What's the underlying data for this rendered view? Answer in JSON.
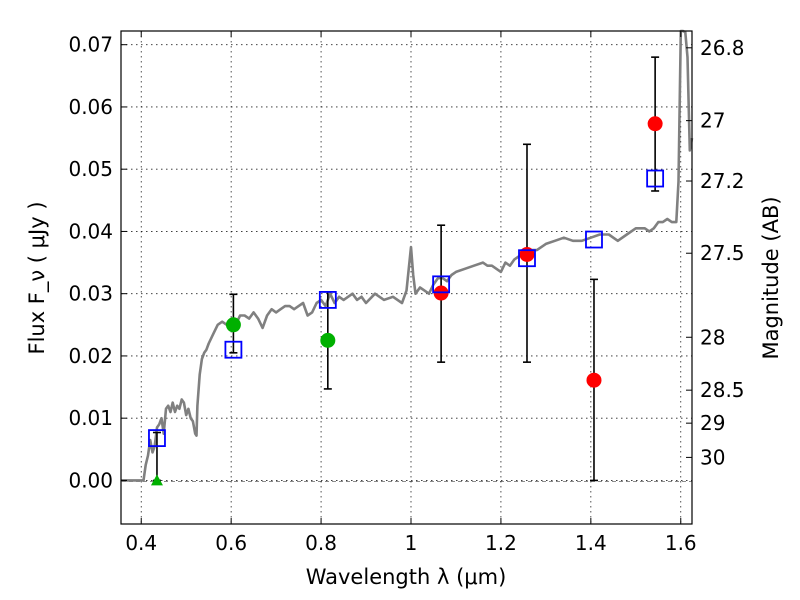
{
  "chart_data": {
    "type": "scatter",
    "xlabel": "Wavelength  λ (μm)",
    "ylabel": "Flux  F_ν  ( μJy )",
    "ylabel_right": "Magnitude (AB)",
    "xlim": [
      0.355,
      1.625
    ],
    "ylim": [
      -0.007,
      0.0722
    ],
    "grid": true,
    "x_ticks": [
      0.4,
      0.6,
      0.8,
      1.0,
      1.2,
      1.4,
      1.6
    ],
    "x_tick_labels": [
      "0.4",
      "0.6",
      "0.8",
      "1",
      "1.2",
      "1.4",
      "1.6"
    ],
    "y_ticks": [
      0.0,
      0.01,
      0.02,
      0.03,
      0.04,
      0.05,
      0.06,
      0.07
    ],
    "y_tick_labels": [
      "0.00",
      "0.01",
      "0.02",
      "0.03",
      "0.04",
      "0.05",
      "0.06",
      "0.07"
    ],
    "right_axis_ticks": [
      {
        "label": "26.8",
        "flux": 0.0695
      },
      {
        "label": "27",
        "flux": 0.0578
      },
      {
        "label": "27.2",
        "flux": 0.0481
      },
      {
        "label": "27.5",
        "flux": 0.0365
      },
      {
        "label": "28",
        "flux": 0.023
      },
      {
        "label": "28.5",
        "flux": 0.0145
      },
      {
        "label": "29",
        "flux": 0.0092
      },
      {
        "label": "30",
        "flux": 0.0037
      }
    ],
    "model_spectrum": {
      "color": "#808080",
      "x": [
        0.355,
        0.39,
        0.405,
        0.41,
        0.415,
        0.42,
        0.425,
        0.43,
        0.435,
        0.44,
        0.445,
        0.45,
        0.455,
        0.46,
        0.465,
        0.47,
        0.475,
        0.48,
        0.485,
        0.49,
        0.495,
        0.5,
        0.505,
        0.51,
        0.515,
        0.52,
        0.523,
        0.525,
        0.53,
        0.535,
        0.54,
        0.545,
        0.55,
        0.56,
        0.57,
        0.58,
        0.59,
        0.6,
        0.61,
        0.62,
        0.63,
        0.64,
        0.65,
        0.66,
        0.67,
        0.68,
        0.69,
        0.7,
        0.71,
        0.72,
        0.73,
        0.74,
        0.75,
        0.76,
        0.77,
        0.78,
        0.79,
        0.8,
        0.81,
        0.82,
        0.83,
        0.84,
        0.85,
        0.86,
        0.87,
        0.88,
        0.89,
        0.9,
        0.92,
        0.94,
        0.96,
        0.98,
        0.99,
        1.0,
        1.005,
        1.01,
        1.02,
        1.03,
        1.04,
        1.05,
        1.06,
        1.07,
        1.08,
        1.09,
        1.1,
        1.12,
        1.14,
        1.16,
        1.17,
        1.18,
        1.19,
        1.2,
        1.21,
        1.22,
        1.23,
        1.24,
        1.25,
        1.26,
        1.27,
        1.28,
        1.3,
        1.32,
        1.34,
        1.36,
        1.38,
        1.4,
        1.42,
        1.44,
        1.46,
        1.48,
        1.5,
        1.52,
        1.53,
        1.54,
        1.55,
        1.56,
        1.57,
        1.58,
        1.59,
        1.595,
        1.6,
        1.605,
        1.61,
        1.615,
        1.62,
        1.625
      ],
      "y": [
        0.0,
        0.0,
        0.0,
        0.0025,
        0.004,
        0.0065,
        0.0045,
        0.0055,
        0.0085,
        0.009,
        0.01,
        0.0075,
        0.0115,
        0.012,
        0.011,
        0.0125,
        0.011,
        0.012,
        0.0115,
        0.013,
        0.0125,
        0.0105,
        0.0115,
        0.01,
        0.0095,
        0.0075,
        0.0072,
        0.012,
        0.017,
        0.0195,
        0.0205,
        0.021,
        0.022,
        0.0235,
        0.025,
        0.0255,
        0.025,
        0.0245,
        0.025,
        0.0265,
        0.0265,
        0.026,
        0.027,
        0.026,
        0.0245,
        0.0265,
        0.0275,
        0.027,
        0.0275,
        0.028,
        0.028,
        0.0275,
        0.028,
        0.0285,
        0.0265,
        0.027,
        0.0285,
        0.029,
        0.028,
        0.03,
        0.0285,
        0.0295,
        0.029,
        0.0295,
        0.03,
        0.029,
        0.0295,
        0.0285,
        0.03,
        0.029,
        0.0295,
        0.0285,
        0.0305,
        0.0375,
        0.033,
        0.03,
        0.031,
        0.0305,
        0.03,
        0.0315,
        0.0325,
        0.0325,
        0.032,
        0.033,
        0.0335,
        0.034,
        0.0345,
        0.035,
        0.0345,
        0.0345,
        0.034,
        0.0335,
        0.035,
        0.0345,
        0.0355,
        0.036,
        0.0365,
        0.036,
        0.037,
        0.037,
        0.038,
        0.0385,
        0.039,
        0.0385,
        0.0385,
        0.039,
        0.0395,
        0.0395,
        0.0385,
        0.0395,
        0.0405,
        0.0405,
        0.04,
        0.0405,
        0.0415,
        0.0415,
        0.042,
        0.0415,
        0.0415,
        0.048,
        0.075,
        0.075,
        0.072,
        0.068,
        0.053,
        0.055
      ]
    },
    "series": [
      {
        "marker": "circle",
        "color": "#00b000",
        "x": [
          0.605,
          0.815
        ],
        "y": [
          0.025,
          0.0225
        ]
      },
      {
        "marker": "circle",
        "color": "#ff0000",
        "x": [
          1.067,
          1.258,
          1.407,
          1.543
        ],
        "y": [
          0.0301,
          0.0363,
          0.0161,
          0.0573
        ]
      },
      {
        "marker": "triangle",
        "color": "#00b000",
        "x": [
          0.435
        ],
        "y": [
          0.0
        ]
      },
      {
        "marker": "open-square",
        "color": "#0000ff",
        "x": [
          0.435,
          0.605,
          0.815,
          1.067,
          1.258,
          1.407,
          1.543
        ],
        "y": [
          0.0068,
          0.021,
          0.029,
          0.0315,
          0.0357,
          0.0387,
          0.0485
        ]
      }
    ],
    "error_bars": [
      {
        "x": 0.435,
        "low": 0.0,
        "high": 0.0077
      },
      {
        "x": 0.605,
        "low": 0.0205,
        "high": 0.0299
      },
      {
        "x": 0.815,
        "low": 0.0147,
        "high": 0.0303
      },
      {
        "x": 1.067,
        "low": 0.019,
        "high": 0.041
      },
      {
        "x": 1.258,
        "low": 0.019,
        "high": 0.054
      },
      {
        "x": 1.407,
        "low": 0.0,
        "high": 0.0323
      },
      {
        "x": 1.543,
        "low": 0.0465,
        "high": 0.068
      }
    ]
  }
}
